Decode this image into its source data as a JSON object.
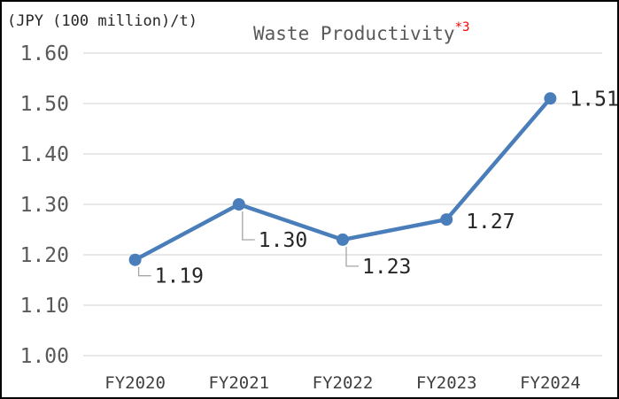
{
  "chart_data": {
    "type": "line",
    "title": "Waste Productivity",
    "title_note": "*3",
    "ylabel": "(JPY (100 million)/t)",
    "xlabel": "",
    "categories": [
      "FY2020",
      "FY2021",
      "FY2022",
      "FY2023",
      "FY2024"
    ],
    "series": [
      {
        "values": [
          1.19,
          1.3,
          1.23,
          1.27,
          1.51
        ]
      }
    ],
    "data_labels": [
      "1.19",
      "1.30",
      "1.23",
      "1.27",
      "1.51"
    ],
    "ylim": [
      1.0,
      1.6
    ],
    "yticks": [
      "1.00",
      "1.10",
      "1.20",
      "1.30",
      "1.40",
      "1.50",
      "1.60"
    ],
    "grid": true,
    "legend": "none",
    "colors": {
      "line": "#4a7ebb",
      "grid": "#d9d9d9",
      "leader": "#a6a6a6",
      "note": "#ff0000"
    }
  }
}
